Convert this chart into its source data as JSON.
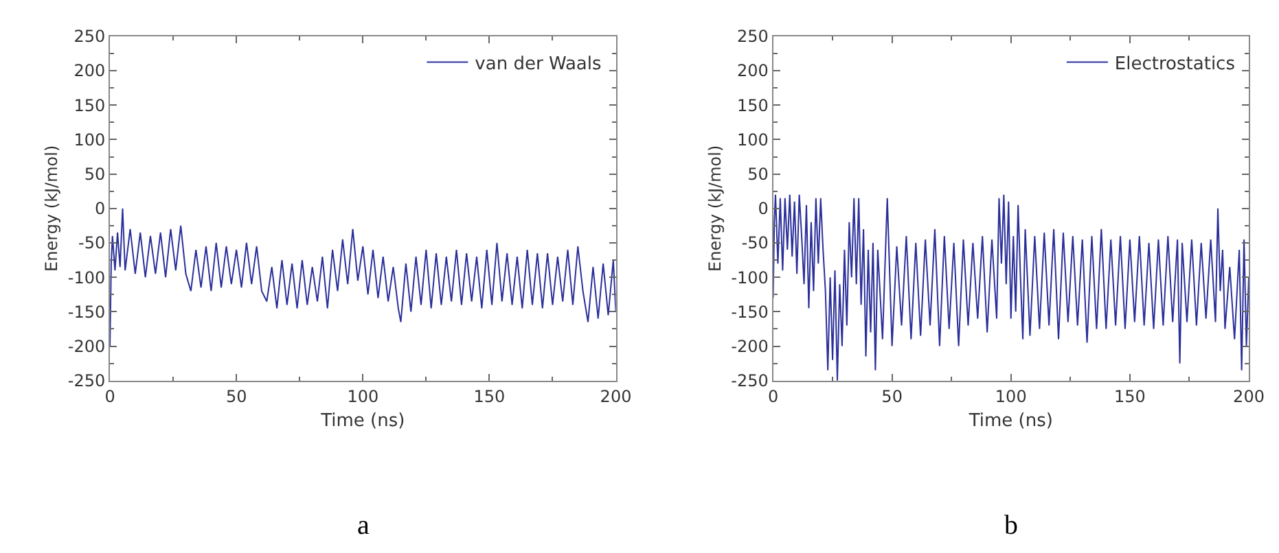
{
  "chart_data": [
    {
      "type": "line",
      "xlabel": "Time (ns)",
      "ylabel": "Energy (kJ/mol)",
      "annotations": [
        "a"
      ],
      "xlim": [
        0,
        200
      ],
      "xticks": [
        0,
        50,
        100,
        150,
        200
      ],
      "ylim": [
        -250,
        250
      ],
      "yticks": [
        -250,
        -200,
        -150,
        -100,
        -50,
        0,
        50,
        100,
        150,
        200,
        250
      ],
      "legend": "top right",
      "marker": "none",
      "line_style": "solid",
      "series": [
        {
          "name": "van der Waals",
          "color": "#2a2f9a",
          "x": [
            0,
            0.5,
            1,
            2,
            3,
            4,
            5,
            6,
            8,
            10,
            12,
            14,
            16,
            18,
            20,
            22,
            24,
            26,
            28,
            30,
            32,
            34,
            36,
            38,
            40,
            42,
            44,
            46,
            48,
            50,
            52,
            54,
            56,
            58,
            60,
            62,
            64,
            66,
            68,
            70,
            72,
            74,
            76,
            78,
            80,
            82,
            84,
            86,
            88,
            90,
            92,
            94,
            96,
            98,
            100,
            102,
            104,
            106,
            108,
            110,
            112,
            114,
            115,
            117,
            119,
            121,
            123,
            125,
            127,
            129,
            131,
            133,
            135,
            137,
            139,
            141,
            143,
            145,
            147,
            149,
            151,
            153,
            155,
            157,
            159,
            161,
            163,
            165,
            167,
            169,
            171,
            173,
            175,
            177,
            179,
            181,
            183,
            185,
            187,
            189,
            191,
            193,
            195,
            197,
            199,
            200
          ],
          "values": [
            -200,
            -80,
            -40,
            -90,
            -35,
            -85,
            0,
            -90,
            -30,
            -95,
            -35,
            -100,
            -40,
            -95,
            -35,
            -100,
            -30,
            -90,
            -25,
            -95,
            -120,
            -60,
            -115,
            -55,
            -120,
            -50,
            -115,
            -55,
            -110,
            -60,
            -115,
            -50,
            -110,
            -55,
            -120,
            -135,
            -85,
            -145,
            -75,
            -140,
            -80,
            -145,
            -75,
            -140,
            -85,
            -135,
            -70,
            -145,
            -60,
            -120,
            -45,
            -110,
            -30,
            -105,
            -55,
            -125,
            -60,
            -130,
            -70,
            -135,
            -85,
            -145,
            -165,
            -80,
            -150,
            -70,
            -140,
            -60,
            -145,
            -65,
            -140,
            -70,
            -135,
            -60,
            -140,
            -65,
            -135,
            -70,
            -145,
            -60,
            -140,
            -50,
            -135,
            -65,
            -140,
            -70,
            -145,
            -60,
            -140,
            -65,
            -145,
            -65,
            -140,
            -70,
            -135,
            -60,
            -140,
            -55,
            -120,
            -165,
            -85,
            -160,
            -80,
            -155,
            -75,
            -150
          ]
        }
      ]
    },
    {
      "type": "line",
      "xlabel": "Time (ns)",
      "ylabel": "Energy (kJ/mol)",
      "annotations": [
        "b"
      ],
      "xlim": [
        0,
        200
      ],
      "xticks": [
        0,
        50,
        100,
        150,
        200
      ],
      "ylim": [
        -250,
        250
      ],
      "yticks": [
        -250,
        -200,
        -150,
        -100,
        -50,
        0,
        50,
        100,
        150,
        200,
        250
      ],
      "legend": "top right",
      "marker": "none",
      "line_style": "solid",
      "series": [
        {
          "name": "Electrostatics",
          "color": "#2a2f9a",
          "x": [
            0,
            0.5,
            1,
            2,
            3,
            4,
            5,
            6,
            7,
            8,
            9,
            10,
            11,
            12,
            13,
            14,
            15,
            16,
            17,
            18,
            19,
            20,
            21,
            22,
            23,
            24,
            25,
            26,
            27,
            28,
            29,
            30,
            31,
            32,
            33,
            34,
            35,
            36,
            37,
            38,
            39,
            40,
            41,
            42,
            43,
            44,
            46,
            48,
            50,
            52,
            54,
            56,
            58,
            60,
            62,
            64,
            66,
            68,
            70,
            72,
            74,
            76,
            78,
            80,
            82,
            84,
            86,
            88,
            90,
            92,
            94,
            95,
            96,
            97,
            98,
            99,
            100,
            101,
            102,
            103,
            104,
            105,
            106,
            108,
            110,
            112,
            114,
            116,
            118,
            120,
            122,
            124,
            126,
            128,
            130,
            132,
            134,
            136,
            138,
            140,
            142,
            144,
            146,
            148,
            150,
            152,
            154,
            156,
            158,
            160,
            162,
            164,
            166,
            168,
            170,
            171,
            172,
            174,
            176,
            178,
            180,
            182,
            184,
            186,
            187,
            188,
            189,
            190,
            192,
            194,
            196,
            197,
            198,
            199,
            200
          ],
          "values": [
            -130,
            -20,
            20,
            -80,
            15,
            -90,
            15,
            -60,
            20,
            -70,
            10,
            -95,
            20,
            -40,
            -110,
            5,
            -145,
            -20,
            -120,
            15,
            -80,
            15,
            -60,
            -120,
            -235,
            -100,
            -220,
            -90,
            -250,
            -110,
            -200,
            -60,
            -170,
            -20,
            -100,
            15,
            -110,
            15,
            -140,
            -30,
            -215,
            -60,
            -180,
            -50,
            -235,
            -60,
            -190,
            15,
            -200,
            -55,
            -170,
            -40,
            -190,
            -50,
            -185,
            -45,
            -170,
            -30,
            -200,
            -40,
            -175,
            -50,
            -200,
            -45,
            -170,
            -50,
            -160,
            -40,
            -180,
            -45,
            -160,
            15,
            -80,
            20,
            -110,
            10,
            -160,
            -40,
            -150,
            5,
            -100,
            -190,
            -30,
            -185,
            -40,
            -175,
            -35,
            -170,
            -30,
            -190,
            -35,
            -165,
            -40,
            -170,
            -45,
            -195,
            -40,
            -175,
            -30,
            -175,
            -45,
            -170,
            -40,
            -175,
            -45,
            -165,
            -40,
            -170,
            -50,
            -175,
            -45,
            -170,
            -40,
            -165,
            -45,
            -225,
            -50,
            -165,
            -45,
            -170,
            -50,
            -160,
            -45,
            -165,
            0,
            -120,
            -60,
            -175,
            -85,
            -190,
            -60,
            -235,
            -45,
            -200,
            -100
          ]
        }
      ]
    }
  ]
}
